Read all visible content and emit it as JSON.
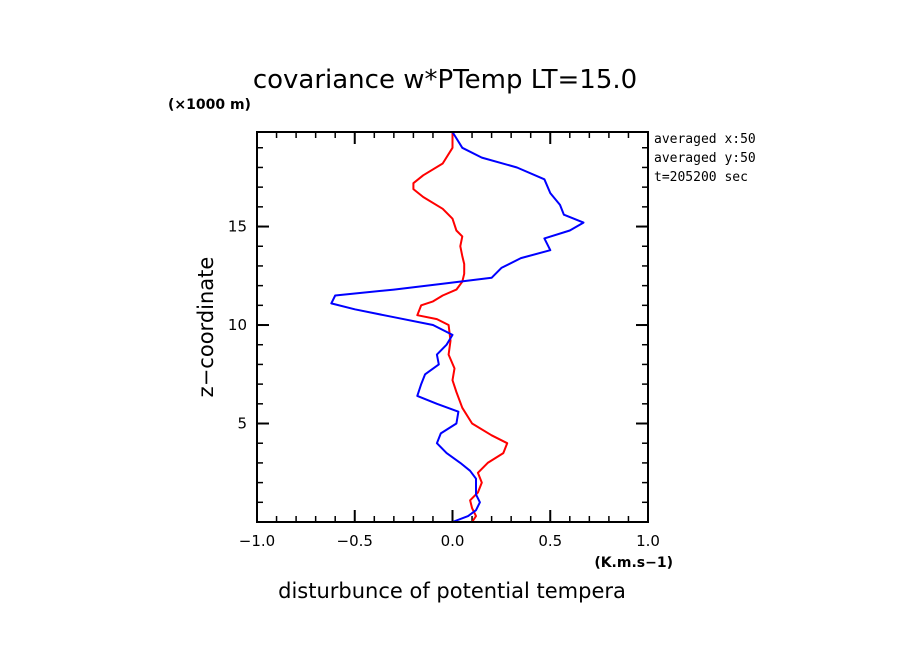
{
  "chart_data": {
    "type": "line",
    "title": "covariance w*PTemp LT=15.0",
    "y_unit_label": "(×1000 m)",
    "x_unit_label": "(K.m.s−1)",
    "xlabel": "disturbunce of potential tempera",
    "ylabel": "z−coordinate",
    "info_lines": [
      "averaged  x:50",
      "averaged  y:50",
      "t=205200 sec"
    ],
    "xlim": [
      -1.0,
      1.0
    ],
    "ylim": [
      0,
      19.8
    ],
    "x_ticks": [
      {
        "value": -1.0,
        "label": "−1.0"
      },
      {
        "value": -0.5,
        "label": "−0.5"
      },
      {
        "value": 0.0,
        "label": "0.0"
      },
      {
        "value": 0.5,
        "label": "0.5"
      },
      {
        "value": 1.0,
        "label": "1.0"
      }
    ],
    "y_ticks": [
      {
        "value": 5,
        "label": "5"
      },
      {
        "value": 10,
        "label": "10"
      },
      {
        "value": 15,
        "label": "15"
      }
    ],
    "x_minor_step": 0.1,
    "y_minor_step": 1,
    "grid": false,
    "series": [
      {
        "color": "#ff0000",
        "points": [
          [
            0.1,
            0.0
          ],
          [
            0.12,
            0.3
          ],
          [
            0.1,
            0.7
          ],
          [
            0.09,
            1.1
          ],
          [
            0.13,
            1.5
          ],
          [
            0.15,
            2.0
          ],
          [
            0.13,
            2.5
          ],
          [
            0.18,
            3.0
          ],
          [
            0.26,
            3.5
          ],
          [
            0.28,
            4.0
          ],
          [
            0.2,
            4.4
          ],
          [
            0.1,
            5.0
          ],
          [
            0.05,
            5.8
          ],
          [
            0.02,
            6.6
          ],
          [
            0.0,
            7.2
          ],
          [
            0.01,
            7.8
          ],
          [
            -0.02,
            8.5
          ],
          [
            -0.01,
            9.2
          ],
          [
            -0.02,
            10.0
          ],
          [
            -0.08,
            10.3
          ],
          [
            -0.18,
            10.5
          ],
          [
            -0.16,
            11.0
          ],
          [
            -0.1,
            11.2
          ],
          [
            -0.05,
            11.5
          ],
          [
            0.02,
            11.8
          ],
          [
            0.05,
            12.2
          ],
          [
            0.06,
            12.6
          ],
          [
            0.06,
            13.1
          ],
          [
            0.05,
            13.5
          ],
          [
            0.04,
            14.0
          ],
          [
            0.05,
            14.5
          ],
          [
            0.02,
            14.8
          ],
          [
            0.0,
            15.4
          ],
          [
            -0.05,
            15.9
          ],
          [
            -0.15,
            16.5
          ],
          [
            -0.2,
            16.9
          ],
          [
            -0.2,
            17.2
          ],
          [
            -0.15,
            17.6
          ],
          [
            -0.05,
            18.2
          ],
          [
            0.0,
            19.0
          ],
          [
            0.0,
            19.8
          ]
        ]
      },
      {
        "color": "#0000ff",
        "points": [
          [
            0.0,
            0.0
          ],
          [
            0.08,
            0.3
          ],
          [
            0.12,
            0.6
          ],
          [
            0.14,
            1.0
          ],
          [
            0.12,
            1.4
          ],
          [
            0.12,
            1.8
          ],
          [
            0.12,
            2.2
          ],
          [
            0.09,
            2.6
          ],
          [
            0.04,
            3.0
          ],
          [
            -0.03,
            3.5
          ],
          [
            -0.08,
            4.0
          ],
          [
            -0.06,
            4.5
          ],
          [
            0.02,
            5.0
          ],
          [
            0.03,
            5.6
          ],
          [
            -0.08,
            6.0
          ],
          [
            -0.18,
            6.4
          ],
          [
            -0.16,
            7.0
          ],
          [
            -0.14,
            7.5
          ],
          [
            -0.07,
            8.0
          ],
          [
            -0.08,
            8.5
          ],
          [
            -0.03,
            9.0
          ],
          [
            0.0,
            9.5
          ],
          [
            -0.1,
            10.0
          ],
          [
            -0.3,
            10.4
          ],
          [
            -0.5,
            10.8
          ],
          [
            -0.62,
            11.1
          ],
          [
            -0.6,
            11.5
          ],
          [
            -0.3,
            11.8
          ],
          [
            -0.05,
            12.1
          ],
          [
            0.2,
            12.4
          ],
          [
            0.25,
            12.9
          ],
          [
            0.35,
            13.4
          ],
          [
            0.5,
            13.8
          ],
          [
            0.47,
            14.4
          ],
          [
            0.6,
            14.8
          ],
          [
            0.67,
            15.2
          ],
          [
            0.57,
            15.6
          ],
          [
            0.55,
            16.1
          ],
          [
            0.5,
            16.7
          ],
          [
            0.47,
            17.4
          ],
          [
            0.33,
            18.0
          ],
          [
            0.15,
            18.5
          ],
          [
            0.05,
            19.0
          ],
          [
            0.0,
            19.8
          ]
        ]
      }
    ]
  }
}
